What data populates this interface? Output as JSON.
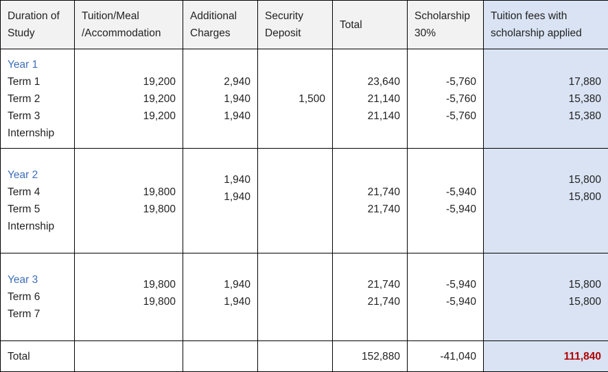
{
  "headers": {
    "duration": [
      "Duration of",
      "Study"
    ],
    "tuition": [
      "Tuition/Meal",
      "/Accommodation"
    ],
    "additional": [
      "Additional",
      "Charges"
    ],
    "security": [
      "Security",
      "Deposit"
    ],
    "total": "Total",
    "scholarship": [
      "Scholarship",
      "30%"
    ],
    "applied": [
      "Tuition fees with",
      "scholarship applied"
    ]
  },
  "year1": {
    "label": "Year 1",
    "terms": [
      "Term 1",
      "Term 2",
      "Term 3",
      "Internship"
    ],
    "tuition": [
      "19,200",
      "19,200",
      "19,200"
    ],
    "additional": [
      "2,940",
      "1,940",
      "1,940"
    ],
    "security": "1,500",
    "total": [
      "23,640",
      "21,140",
      "21,140"
    ],
    "scholarship": [
      "-5,760",
      "-5,760",
      "-5,760"
    ],
    "applied": [
      "17,880",
      "15,380",
      "15,380"
    ]
  },
  "year2": {
    "label": "Year 2",
    "terms": [
      "Term 4",
      "Term 5",
      "Internship"
    ],
    "tuition": [
      "19,800",
      "19,800"
    ],
    "additional": [
      "1,940",
      "1,940"
    ],
    "total": [
      "21,740",
      "21,740"
    ],
    "scholarship": [
      "-5,940",
      "-5,940"
    ],
    "applied": [
      "15,800",
      "15,800"
    ]
  },
  "year3": {
    "label": "Year 3",
    "terms": [
      "Term 6",
      "Term 7"
    ],
    "tuition": [
      "19,800",
      "19,800"
    ],
    "additional": [
      "1,940",
      "1,940"
    ],
    "total": [
      "21,740",
      "21,740"
    ],
    "scholarship": [
      "-5,940",
      "-5,940"
    ],
    "applied": [
      "15,800",
      "15,800"
    ]
  },
  "totals": {
    "label": "Total",
    "total": "152,880",
    "scholarship": "-41,040",
    "applied": "111,840"
  },
  "colors": {
    "header_bg": "#f2f2f2",
    "highlight_bg": "#d9e3f3",
    "year_label": "#3d6eb7",
    "grand_total": "#b00000"
  }
}
